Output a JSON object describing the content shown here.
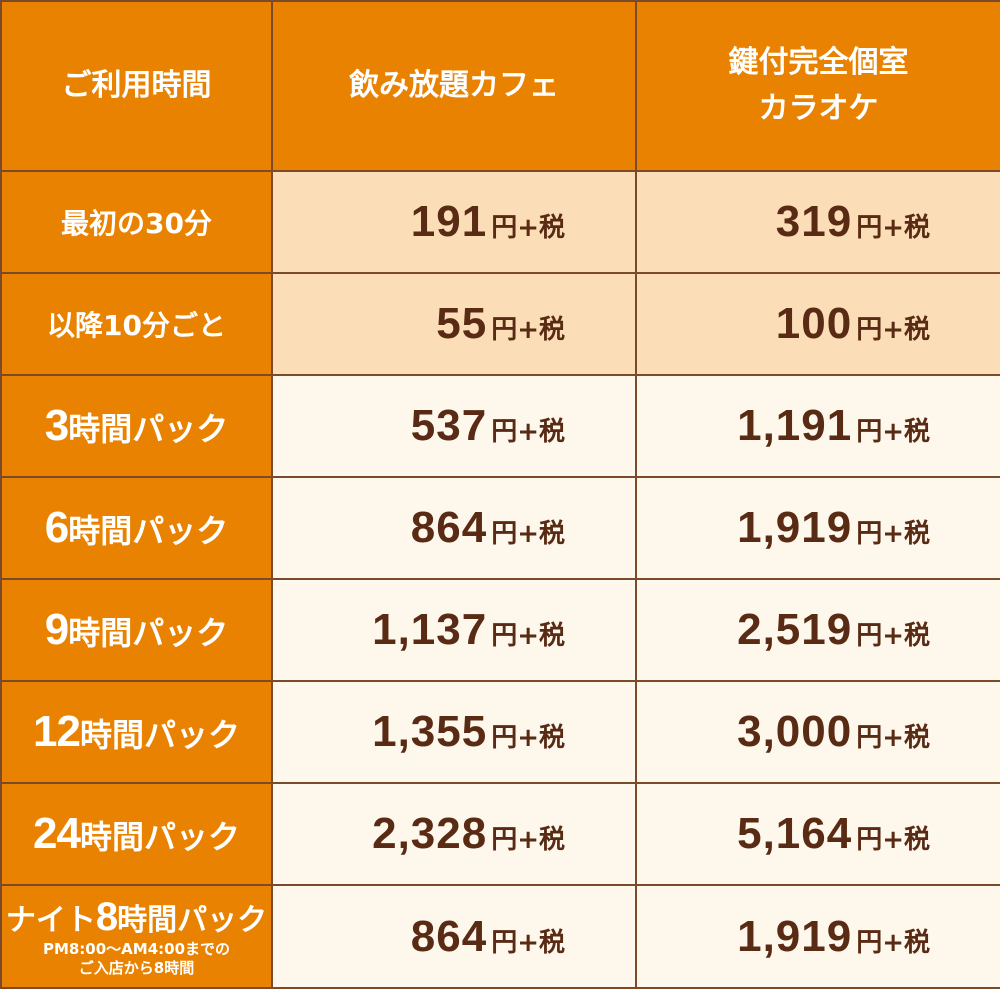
{
  "header": {
    "time_label": "ご利用時間",
    "cafe_label": "飲み放題カフェ",
    "karaoke_line1": "鍵付完全個室",
    "karaoke_line2": "カラオケ"
  },
  "unit": "円+税",
  "rows": [
    {
      "label": "最初の30分",
      "cafe": "191",
      "karaoke": "319"
    },
    {
      "label": "以降10分ごと",
      "cafe": "55",
      "karaoke": "100"
    },
    {
      "label_num": "3",
      "label_text": "時間パック",
      "cafe": "537",
      "karaoke": "1,191"
    },
    {
      "label_num": "6",
      "label_text": "時間パック",
      "cafe": "864",
      "karaoke": "1,919"
    },
    {
      "label_num": "9",
      "label_text": "時間パック",
      "cafe": "1,137",
      "karaoke": "2,519"
    },
    {
      "label_num": "12",
      "label_text": "時間パック",
      "cafe": "1,355",
      "karaoke": "3,000"
    },
    {
      "label_num": "24",
      "label_text": "時間パック",
      "cafe": "2,328",
      "karaoke": "5,164"
    },
    {
      "label_prefix": "ナイト",
      "label_num": "8",
      "label_text": "時間パック",
      "note_line1": "PM8:00～AM4:00までの",
      "note_line2": "ご入店から8時間",
      "cafe": "864",
      "karaoke": "1,919"
    }
  ],
  "colors": {
    "orange": "#e98200",
    "peach": "#fbddb8",
    "cream": "#fdf7ec",
    "price_text": "#5a2b14",
    "border": "#7a4a2a"
  }
}
